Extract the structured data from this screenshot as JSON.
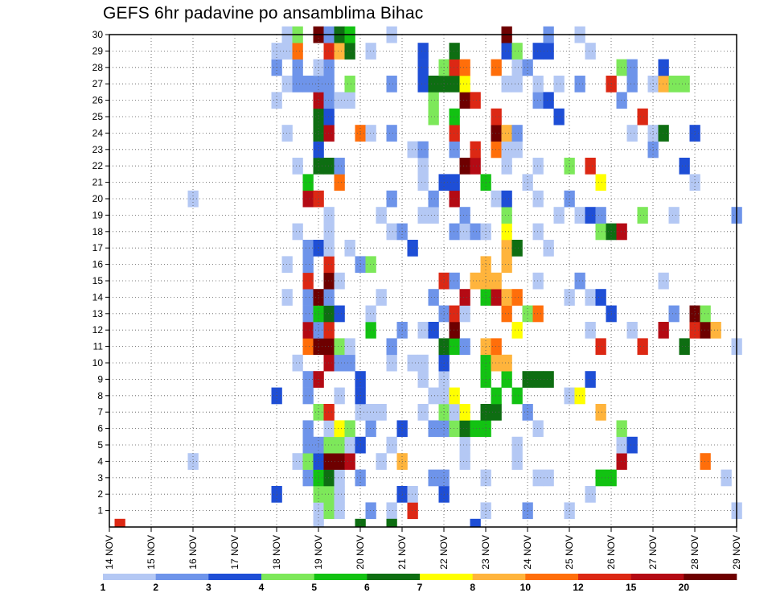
{
  "title": "GEFS 6hr padavine po ansamblima Bihac",
  "colors": {
    "background": "#ffffff",
    "frame": "#000000",
    "grid": "#555555"
  },
  "chart_data": {
    "type": "heatmap",
    "title": "GEFS 6hr padavine po ansamblima Bihac",
    "xlabel": "",
    "ylabel": "",
    "x_tick_labels": [
      "14 NOV",
      "15 NOV",
      "16 NOV",
      "17 NOV",
      "18 NOV",
      "19 NOV",
      "20 NOV",
      "21 NOV",
      "22 NOV",
      "23 NOV",
      "24 NOV",
      "25 NOV",
      "26 NOV",
      "27 NOV",
      "28 NOV",
      "29 NOV"
    ],
    "xlim_days": [
      0,
      15
    ],
    "y_tick_labels": [
      "1",
      "2",
      "3",
      "4",
      "5",
      "6",
      "7",
      "8",
      "9",
      "10",
      "11",
      "12",
      "13",
      "14",
      "15",
      "16",
      "17",
      "18",
      "19",
      "20",
      "21",
      "22",
      "23",
      "24",
      "25",
      "26",
      "27",
      "28",
      "29",
      "30"
    ],
    "ylim": [
      0,
      30
    ],
    "grid": true,
    "colorbar": {
      "placement": "bottom",
      "colors": [
        "#b4c8f4",
        "#6e94ea",
        "#1e4ed6",
        "#7de85a",
        "#12c212",
        "#0e6e12",
        "#ffff00",
        "#ffb43c",
        "#ff6e0a",
        "#dc2814",
        "#b40a14",
        "#6e0000"
      ],
      "labels": [
        "1",
        "2",
        "3",
        "4",
        "5",
        "6",
        "7",
        "8",
        "10",
        "12",
        "15",
        "20"
      ]
    },
    "cell_days": 0.25,
    "columns": [
      {
        "d": 0.0,
        "m": "..............................",
        "e": ""
      },
      {
        "d": 0.25,
        "m": "..............................",
        "e": "j"
      },
      {
        "d": 0.5,
        "m": "..............................",
        "e": ""
      },
      {
        "d": 0.75,
        "m": "..............................",
        "e": ""
      },
      {
        "d": 1.0,
        "m": "..............................",
        "e": ""
      },
      {
        "d": 1.25,
        "m": "..............................",
        "e": ""
      },
      {
        "d": 1.5,
        "m": "..............................",
        "e": ""
      },
      {
        "d": 1.75,
        "m": "..............................",
        "e": ""
      },
      {
        "d": 2.0,
        "m": "...a...............a..........",
        "e": ""
      },
      {
        "d": 2.25,
        "m": "..............................",
        "e": ""
      },
      {
        "d": 2.5,
        "m": "..............................",
        "e": ""
      },
      {
        "d": 2.75,
        "m": "..............................",
        "e": ""
      },
      {
        "d": 3.0,
        "m": "..............................",
        "e": ""
      },
      {
        "d": 3.25,
        "m": "..............................",
        "e": ""
      },
      {
        "d": 3.5,
        "m": "..............................",
        "e": ""
      },
      {
        "d": 3.75,
        "m": "..............................",
        "e": ""
      },
      {
        "d": 4.0,
        "m": ".c.....c.................a.ba.",
        "e": ""
      },
      {
        "d": 4.25,
        "m": ".............a.a.......a..a.aa",
        "e": ""
      },
      {
        "d": 4.5,
        "m": "...a.....a.......a...a....bbid",
        "e": ""
      },
      {
        "d": 4.75,
        "m": "..bdbb.bb.ikbbjbb..ke.....b...",
        "e": ""
      },
      {
        "d": 5.0,
        "m": "adecb.d.k.lbelm.c..j.fcffkba.l",
        "e": "a"
      },
      {
        "d": 5.25,
        "m": "ddfldaj..kljfbljaaa..fmkcbbbjb",
        "e": ""
      },
      {
        "d": 5.5,
        "m": "aaaldg.a.bd.c.a.....ib...a..hf",
        "e": ""
      },
      {
        "d": 5.75,
        "m": "...kad...ba.....a........ad.fe",
        "e": ""
      },
      {
        "d": 6.0,
        "m": "..b.c.acc......b.......i......",
        "e": "f"
      },
      {
        "d": 6.25,
        "m": "b....ba....ea..d.......a....a.",
        "e": ""
      },
      {
        "d": 6.5,
        "m": "...a..a......a....a...........",
        "e": ""
      },
      {
        "d": 6.75,
        "m": "a...a....ab......a.b...b..b..a",
        "e": "f"
      },
      {
        "d": 7.0,
        "m": ".c.h.c.....b.....b............",
        "e": ""
      },
      {
        "d": 7.25,
        "m": "ja.......a......c.....a.......",
        "e": ""
      },
      {
        "d": 7.5,
        "m": "......a.aa.a......a.aab...ccc.",
        "e": ""
      },
      {
        "d": 7.75,
        "m": "..b..b.a...c.b....ab....ddf...",
        "e": ""
      },
      {
        "d": 8.0,
        "m": ".cb..bdaacf.b.jn....c.....fd..",
        "e": ""
      },
      {
        "d": 8.25,
        "m": ".....dag.nelj.b..b.kc.bje.fjf.",
        "e": ""
      },
      {
        "d": 8.5,
        "m": "...aafg...b.ak...ab..l...lgi..",
        "e": ""
      },
      {
        "d": 8.75,
        "m": ".....e........h..b...kj..j..m.",
        "e": "c"
      },
      {
        "d": 9.0,
        "m": "a.a..ef.eeh..ehh.a..e.........",
        "e": ""
      },
      {
        "d": 9.25,
        "m": "......fe.hi..kh....a..ilj..i..",
        "e": ""
      },
      {
        "d": 9.5,
        "m": "........eh..ih.hhgdc.aah..a.cl",
        "e": ""
      },
      {
        "d": 9.75,
        "m": "...aa..e...g.i..f.....ab..aad.",
        "e": ""
      },
      {
        "d": 10.0,
        "m": "b.....b.f...d.......a......b..",
        "e": ""
      },
      {
        "d": 10.25,
        "m": "..a..a..f...i.a..a.a.a...ba.c.",
        "e": ""
      },
      {
        "d": 10.5,
        "m": "..a.....f.......a........c..cb",
        "e": ""
      },
      {
        "d": 10.75,
        "m": "..................a.....c.a...",
        "e": ""
      },
      {
        "d": 11.0,
        "m": "a......a.....a.....b.d........",
        "e": ""
      },
      {
        "d": 11.25,
        "m": ".......g......b...a.......b..a",
        "e": ""
      },
      {
        "d": 11.5,
        "m": ".a......c..a.a....c..j......a.",
        "e": ""
      },
      {
        "d": 11.75,
        "m": "..e...h...j..c...db.g.........",
        "e": ""
      },
      {
        "d": 12.0,
        "m": "..e.........c....f........j...",
        "e": ""
      },
      {
        "d": 12.25,
        "m": "...kad...........k.......b.d..",
        "e": ""
      },
      {
        "d": 12.5,
        "m": "....c......a...........a..bb..",
        "e": ""
      },
      {
        "d": 12.75,
        "m": "..........j.......d.....j.....",
        "e": ""
      },
      {
        "d": 13.0,
        "m": "......................ba..a...",
        "e": ""
      },
      {
        "d": 13.25,
        "m": "...........k..a........f..hc..",
        "e": ""
      },
      {
        "d": 13.5,
        "m": "............b.....a.......d...",
        "e": ""
      },
      {
        "d": 13.75,
        "m": "..........f..........c....d...",
        "e": ""
      },
      {
        "d": 14.0,
        "m": "...........jl.......a..c......",
        "e": ""
      },
      {
        "d": 14.25,
        "m": "...i.......ld.................",
        "e": ""
      },
      {
        "d": 14.5,
        "m": "...........h..................",
        "e": ""
      },
      {
        "d": 14.75,
        "m": "..a...................m.......",
        "e": ""
      },
      {
        "d": 15.0,
        "m": "a.........a.......b...........",
        "e": ""
      }
    ]
  }
}
